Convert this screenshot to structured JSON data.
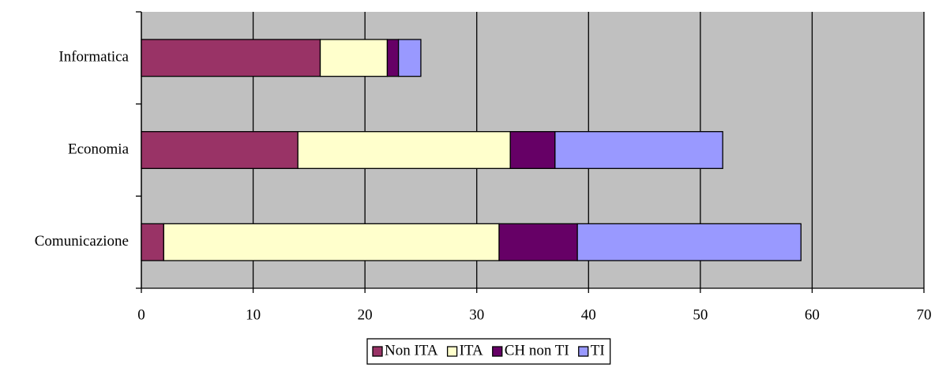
{
  "chart_data": {
    "type": "stacked-barh",
    "categories": [
      "Informatica",
      "Economia",
      "Comunicazione"
    ],
    "series": [
      {
        "name": "Non ITA",
        "color": "#993366",
        "values": [
          16,
          14,
          2
        ]
      },
      {
        "name": "ITA",
        "color": "#ffffcc",
        "values": [
          6,
          19,
          30
        ]
      },
      {
        "name": "CH non TI",
        "color": "#660066",
        "values": [
          1,
          4,
          7
        ]
      },
      {
        "name": "TI",
        "color": "#9999ff",
        "values": [
          2,
          15,
          20
        ]
      }
    ],
    "xlim": [
      0,
      70
    ],
    "xticks": [
      0,
      10,
      20,
      30,
      40,
      50,
      60,
      70
    ],
    "grid": true,
    "legend": "bottom",
    "background": "#c0c0c0"
  }
}
